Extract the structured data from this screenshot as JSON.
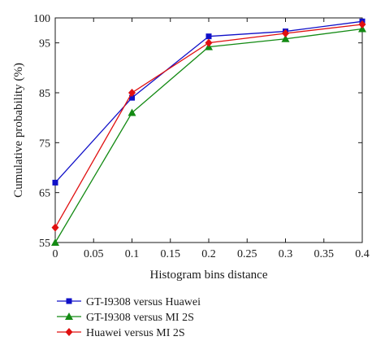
{
  "chart_data": {
    "type": "line",
    "x": [
      0,
      0.1,
      0.2,
      0.3,
      0.4
    ],
    "x_ticks": [
      "0",
      "0.05",
      "0.1",
      "0.15",
      "0.2",
      "0.25",
      "0.3",
      "0.35",
      "0.4"
    ],
    "x_tick_values": [
      0,
      0.05,
      0.1,
      0.15,
      0.2,
      0.25,
      0.3,
      0.35,
      0.4
    ],
    "y_ticks": [
      "55",
      "65",
      "75",
      "85",
      "95",
      "100"
    ],
    "y_tick_values": [
      55,
      65,
      75,
      85,
      95,
      100
    ],
    "xlim": [
      0,
      0.4
    ],
    "ylim": [
      55,
      100
    ],
    "xlabel": "Histogram bins distance",
    "ylabel": "Cumulative probability (%)",
    "grid": false,
    "legend_position": "below",
    "series": [
      {
        "name": "GT-I9308 versus Huawei",
        "values": [
          67,
          84,
          96.3,
          97.3,
          99.3
        ],
        "color": "#1010c8",
        "marker": "square"
      },
      {
        "name": "GT-I9308 versus MI 2S",
        "values": [
          55,
          81,
          94.2,
          95.8,
          97.8
        ],
        "color": "#138a13",
        "marker": "triangle"
      },
      {
        "name": "Huawei versus MI 2S",
        "values": [
          58,
          85,
          95,
          96.9,
          98.7
        ],
        "color": "#e01010",
        "marker": "diamond"
      }
    ]
  }
}
